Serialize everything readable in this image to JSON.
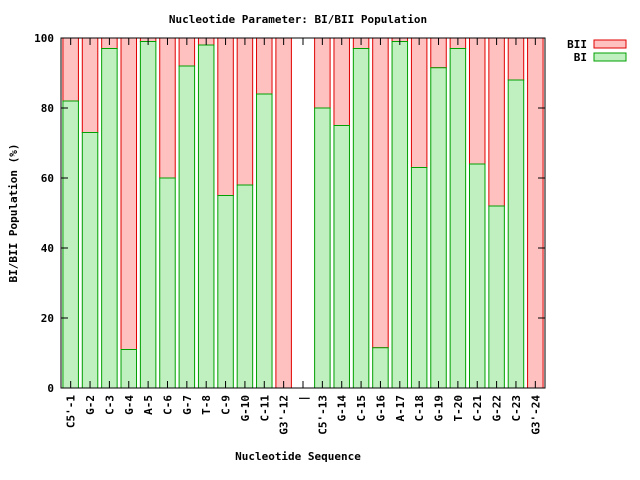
{
  "chart_data": {
    "type": "bar",
    "stacked": true,
    "title": "Nucleotide Parameter: BI/BII Population",
    "xlabel": "Nucleotide Sequence",
    "ylabel": "BI/BII Population (%)",
    "ylim": [
      0,
      100
    ],
    "yticks": [
      "0",
      "20",
      "40",
      "60",
      "80",
      "100"
    ],
    "grid": false,
    "legend_position": "top-right outside",
    "categories": [
      "C5'-1",
      "G-2",
      "C-3",
      "G-4",
      "A-5",
      "C-6",
      "G-7",
      "T-8",
      "C-9",
      "G-10",
      "C-11",
      "G3'-12",
      "|",
      "C5'-13",
      "G-14",
      "C-15",
      "G-16",
      "A-17",
      "C-18",
      "G-19",
      "T-20",
      "C-21",
      "G-22",
      "C-23",
      "G3'-24"
    ],
    "series": [
      {
        "name": "BI",
        "color": "#c0f0c0",
        "edge": "#00a000",
        "values": [
          82,
          73,
          97,
          11,
          99,
          60,
          92,
          98,
          55,
          58,
          84,
          0,
          null,
          80,
          75,
          97,
          11.5,
          99,
          63,
          91.5,
          97,
          64,
          52,
          88,
          0
        ]
      },
      {
        "name": "BII",
        "color": "#ffc0c0",
        "edge": "#e00000",
        "values": [
          18,
          27,
          3,
          89,
          1,
          40,
          8,
          2,
          45,
          42,
          16,
          100,
          null,
          20,
          25,
          3,
          88.5,
          1,
          37,
          8.5,
          3,
          36,
          48,
          12,
          100
        ]
      }
    ]
  }
}
